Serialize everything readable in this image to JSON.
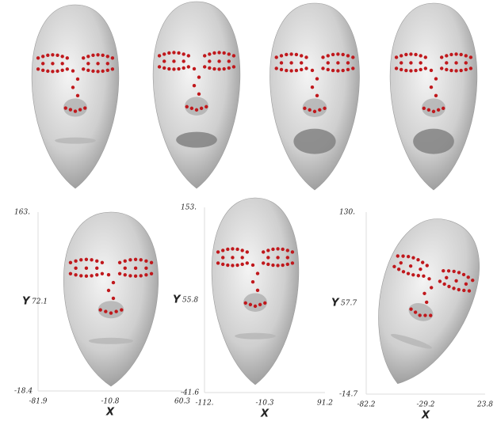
{
  "panels": [
    {
      "y_top": "163.",
      "y_mid": "72.1",
      "y_bottom": "-18.4",
      "x_left": "-81.9",
      "x_mid": "-10.8",
      "x_right": "60.3",
      "x_label": "X",
      "y_label": "Y"
    },
    {
      "y_top": "153.",
      "y_mid": "55.8",
      "y_bottom": "-41.6",
      "x_left": "-112.",
      "x_mid": "-10.3",
      "x_right": "91.2",
      "x_label": "X",
      "y_label": "Y"
    },
    {
      "y_top": "130.",
      "y_mid": "57.7",
      "y_bottom": "-14.7",
      "x_left": "-82.2",
      "x_mid": "-29.2",
      "x_right": "23.8",
      "x_label": "X",
      "y_label": "Y"
    }
  ]
}
